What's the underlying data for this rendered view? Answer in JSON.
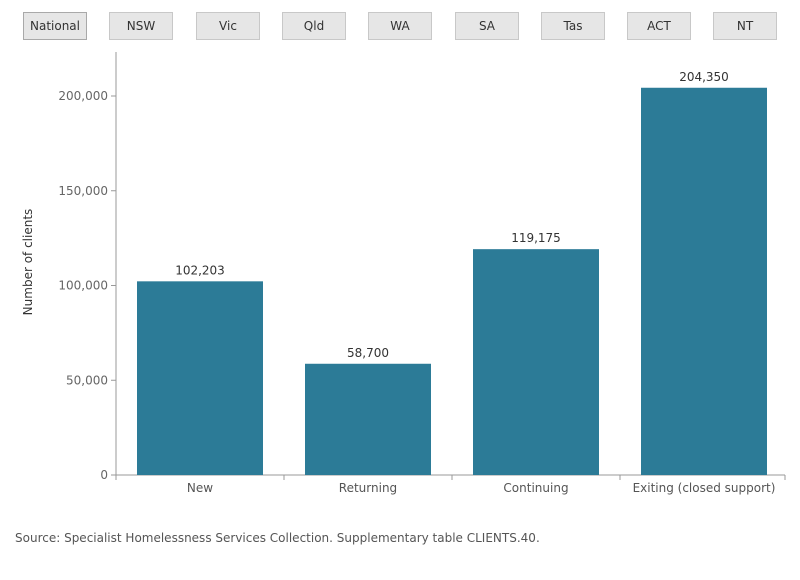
{
  "tabs": [
    {
      "label": "National",
      "selected": true
    },
    {
      "label": "NSW",
      "selected": false
    },
    {
      "label": "Vic",
      "selected": false
    },
    {
      "label": "Qld",
      "selected": false
    },
    {
      "label": "WA",
      "selected": false
    },
    {
      "label": "SA",
      "selected": false
    },
    {
      "label": "Tas",
      "selected": false
    },
    {
      "label": "ACT",
      "selected": false
    },
    {
      "label": "NT",
      "selected": false
    }
  ],
  "chart_data": {
    "type": "bar",
    "categories": [
      "New",
      "Returning",
      "Continuing",
      "Exiting (closed support)"
    ],
    "values": [
      102203,
      58700,
      119175,
      204350
    ],
    "data_labels": [
      "102,203",
      "58,700",
      "119,175",
      "204,350"
    ],
    "ylabel": "Number of clients",
    "xlabel": "",
    "ylim": [
      0,
      220000
    ],
    "yticks": [
      0,
      50000,
      100000,
      150000,
      200000
    ],
    "ytick_labels": [
      "0",
      "50,000",
      "100,000",
      "150,000",
      "200,000"
    ],
    "bar_color": "#2c7b97",
    "grid": false
  },
  "source": "Source: Specialist Homelessness Services Collection. Supplementary table CLIENTS.40."
}
